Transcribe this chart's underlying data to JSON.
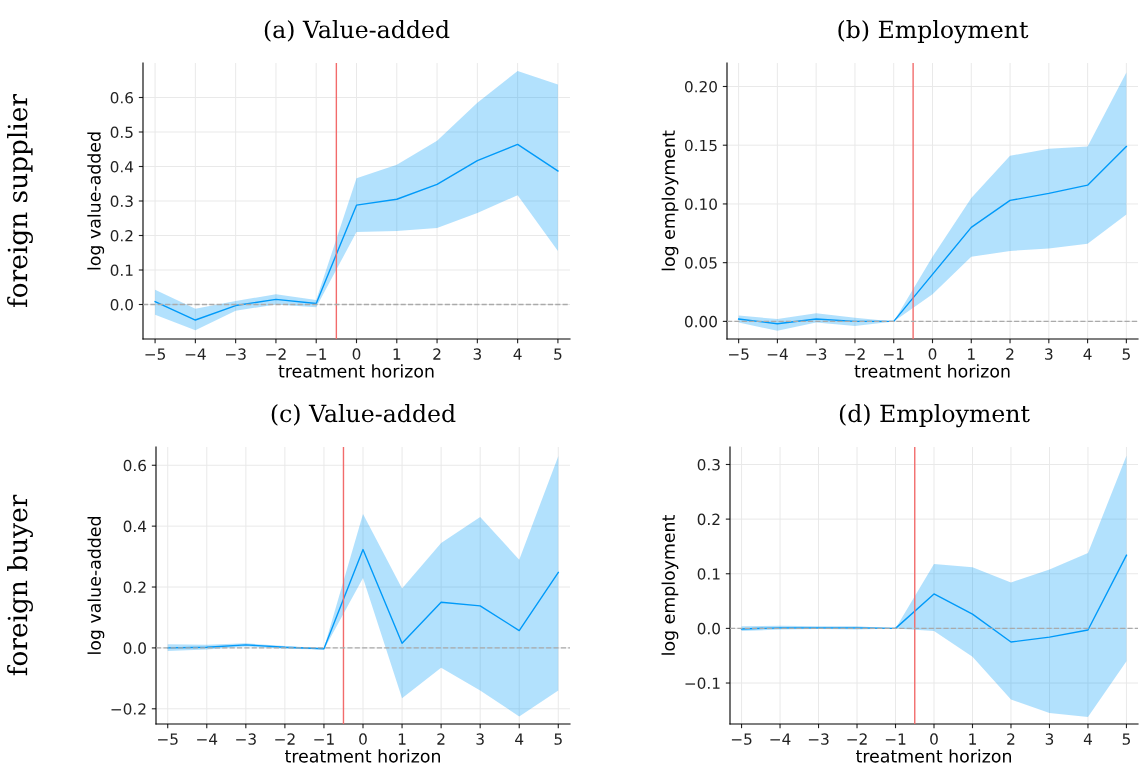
{
  "chart_data": [
    {
      "type": "line",
      "title": "(a) Value-added",
      "xlabel": "treatment horizon",
      "ylabel": "log value-added",
      "annotations": [
        "foreign supplier"
      ],
      "x": [
        -5,
        -4,
        -3,
        -2,
        -1,
        0,
        1,
        2,
        3,
        4,
        5
      ],
      "series": [
        {
          "color": "#009af9",
          "values": [
            0.008,
            -0.045,
            -0.003,
            0.015,
            0.003,
            0.288,
            0.305,
            0.348,
            0.417,
            0.464,
            0.387
          ],
          "lower": [
            -0.03,
            -0.075,
            -0.018,
            0.0,
            -0.008,
            0.21,
            0.213,
            0.222,
            0.265,
            0.317,
            0.155
          ],
          "upper": [
            0.043,
            -0.012,
            0.01,
            0.03,
            0.013,
            0.366,
            0.405,
            0.475,
            0.585,
            0.677,
            0.638
          ]
        }
      ],
      "xlim": [
        -5.3,
        5.3
      ],
      "ylim": [
        -0.1,
        0.7
      ],
      "xticks": [
        {
          "value": -5,
          "label": "−5"
        },
        {
          "value": -4,
          "label": "−4"
        },
        {
          "value": -3,
          "label": "−3"
        },
        {
          "value": -2,
          "label": "−2"
        },
        {
          "value": -1,
          "label": "−1"
        },
        0,
        1,
        2,
        3,
        4,
        5
      ],
      "yticks": [
        {
          "value": 0.0,
          "label": "0.0"
        },
        0.1,
        0.2,
        0.3,
        0.4,
        0.5,
        0.6
      ],
      "ref_lines": [
        {
          "axis": "x",
          "value": -0.5,
          "color": "#f26b6b",
          "line_style": "solid"
        },
        {
          "axis": "y",
          "value": 0,
          "color": "#aaaaaa",
          "line_style": "dashed"
        }
      ],
      "grid": true
    },
    {
      "type": "line",
      "title": "(b) Employment",
      "xlabel": "treatment horizon",
      "ylabel": "log employment",
      "x": [
        -5,
        -4,
        -3,
        -2,
        -1,
        0,
        1,
        2,
        3,
        4,
        5
      ],
      "series": [
        {
          "color": "#009af9",
          "values": [
            0.002,
            -0.002,
            0.002,
            0.0,
            0.0,
            0.04,
            0.08,
            0.103,
            0.109,
            0.116,
            0.149
          ],
          "lower": [
            -0.001,
            -0.008,
            -0.001,
            -0.004,
            0.0,
            0.023,
            0.055,
            0.06,
            0.062,
            0.066,
            0.091
          ],
          "upper": [
            0.005,
            0.002,
            0.007,
            0.003,
            0.0,
            0.055,
            0.105,
            0.141,
            0.147,
            0.149,
            0.212
          ]
        }
      ],
      "xlim": [
        -5.3,
        5.3
      ],
      "ylim": [
        -0.015,
        0.22
      ],
      "xticks": [
        {
          "value": -5,
          "label": "−5"
        },
        {
          "value": -4,
          "label": "−4"
        },
        {
          "value": -3,
          "label": "−3"
        },
        {
          "value": -2,
          "label": "−2"
        },
        {
          "value": -1,
          "label": "−1"
        },
        0,
        1,
        2,
        3,
        4,
        5
      ],
      "yticks": [
        {
          "value": 0.0,
          "label": "0.00"
        },
        {
          "value": 0.05,
          "label": "0.05"
        },
        {
          "value": 0.1,
          "label": "0.10"
        },
        {
          "value": 0.15,
          "label": "0.15"
        },
        {
          "value": 0.2,
          "label": "0.20"
        }
      ],
      "ref_lines": [
        {
          "axis": "x",
          "value": -0.5,
          "color": "#f26b6b",
          "line_style": "solid"
        },
        {
          "axis": "y",
          "value": 0,
          "color": "#aaaaaa",
          "line_style": "dashed"
        }
      ],
      "grid": true
    },
    {
      "type": "line",
      "title": "(c) Value-added",
      "xlabel": "treatment horizon",
      "ylabel": "log value-added",
      "annotations": [
        "foreign buyer"
      ],
      "x": [
        -5,
        -4,
        -3,
        -2,
        -1,
        0,
        1,
        2,
        3,
        4,
        5
      ],
      "series": [
        {
          "color": "#009af9",
          "values": [
            0.0,
            0.002,
            0.01,
            0.002,
            -0.003,
            0.323,
            0.015,
            0.15,
            0.138,
            0.057,
            0.248
          ],
          "lower": [
            -0.01,
            -0.005,
            0.005,
            -0.003,
            -0.005,
            0.23,
            -0.165,
            -0.065,
            -0.14,
            -0.225,
            -0.14
          ],
          "upper": [
            0.012,
            0.01,
            0.015,
            0.006,
            -0.001,
            0.44,
            0.195,
            0.345,
            0.43,
            0.29,
            0.63
          ]
        }
      ],
      "xlim": [
        -5.3,
        5.3
      ],
      "ylim": [
        -0.25,
        0.66
      ],
      "xticks": [
        {
          "value": -5,
          "label": "−5"
        },
        {
          "value": -4,
          "label": "−4"
        },
        {
          "value": -3,
          "label": "−3"
        },
        {
          "value": -2,
          "label": "−2"
        },
        {
          "value": -1,
          "label": "−1"
        },
        0,
        1,
        2,
        3,
        4,
        5
      ],
      "yticks": [
        {
          "value": -0.2,
          "label": "−0.2"
        },
        {
          "value": 0.0,
          "label": "0.0"
        },
        0.2,
        0.4,
        0.6
      ],
      "ref_lines": [
        {
          "axis": "x",
          "value": -0.5,
          "color": "#f26b6b",
          "line_style": "solid"
        },
        {
          "axis": "y",
          "value": 0,
          "color": "#aaaaaa",
          "line_style": "dashed"
        }
      ],
      "grid": true
    },
    {
      "type": "line",
      "title": "(d) Employment",
      "xlabel": "treatment horizon",
      "ylabel": "log employment",
      "x": [
        -5,
        -4,
        -3,
        -2,
        -1,
        0,
        1,
        2,
        3,
        4,
        5
      ],
      "series": [
        {
          "color": "#009af9",
          "values": [
            -0.001,
            0.001,
            0.001,
            0.001,
            0.0,
            0.063,
            0.026,
            -0.025,
            -0.016,
            -0.003,
            0.134
          ],
          "lower": [
            -0.005,
            -0.002,
            -0.001,
            -0.002,
            0.0,
            -0.005,
            -0.052,
            -0.13,
            -0.155,
            -0.162,
            -0.06
          ],
          "upper": [
            0.004,
            0.005,
            0.004,
            0.004,
            0.0,
            0.118,
            0.112,
            0.084,
            0.108,
            0.138,
            0.316
          ]
        }
      ],
      "xlim": [
        -5.3,
        5.3
      ],
      "ylim": [
        -0.175,
        0.332
      ],
      "xticks": [
        {
          "value": -5,
          "label": "−5"
        },
        {
          "value": -4,
          "label": "−4"
        },
        {
          "value": -3,
          "label": "−3"
        },
        {
          "value": -2,
          "label": "−2"
        },
        {
          "value": -1,
          "label": "−1"
        },
        0,
        1,
        2,
        3,
        4,
        5
      ],
      "yticks": [
        {
          "value": -0.1,
          "label": "−0.1"
        },
        {
          "value": 0.0,
          "label": "0.0"
        },
        0.1,
        0.2,
        0.3
      ],
      "ref_lines": [
        {
          "axis": "x",
          "value": -0.5,
          "color": "#f26b6b",
          "line_style": "solid"
        },
        {
          "axis": "y",
          "value": 0,
          "color": "#aaaaaa",
          "line_style": "dashed"
        }
      ],
      "grid": true
    }
  ]
}
